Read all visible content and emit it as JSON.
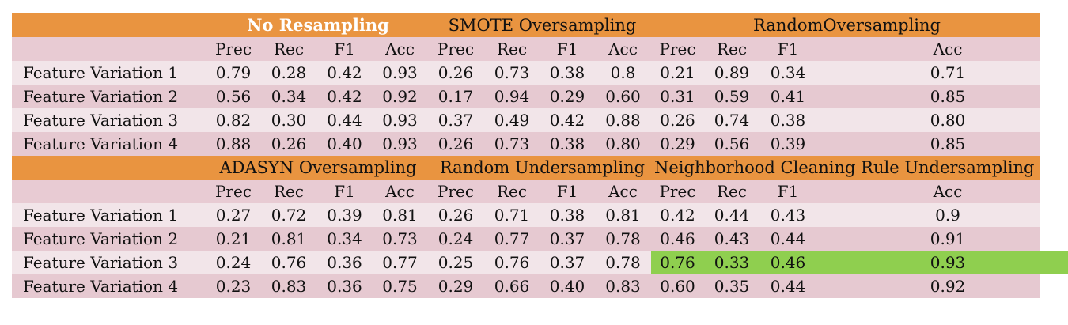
{
  "sections": [
    {
      "groups": [
        "No Resampling",
        "SMOTE Oversampling",
        "RandomOversampling"
      ],
      "metrics": [
        "Prec",
        "Rec",
        "F1",
        "Acc",
        "Prec",
        "Rec",
        "F1",
        "Acc",
        "Prec",
        "Rec",
        "F1",
        "Acc"
      ],
      "rows": [
        {
          "label": "Feature Variation 1",
          "values": [
            "0.79",
            "0.28",
            "0.42",
            "0.93",
            "0.26",
            "0.73",
            "0.38",
            "0.8",
            "0.21",
            "0.89",
            "0.34",
            "0.71"
          ]
        },
        {
          "label": "Feature Variation 2",
          "values": [
            "0.56",
            "0.34",
            "0.42",
            "0.92",
            "0.17",
            "0.94",
            "0.29",
            "0.60",
            "0.31",
            "0.59",
            "0.41",
            "0.85"
          ]
        },
        {
          "label": "Feature Variation 3",
          "values": [
            "0.82",
            "0.30",
            "0.44",
            "0.93",
            "0.37",
            "0.49",
            "0.42",
            "0.88",
            "0.26",
            "0.74",
            "0.38",
            "0.80"
          ]
        },
        {
          "label": "Feature Variation 4",
          "values": [
            "0.88",
            "0.26",
            "0.40",
            "0.93",
            "0.26",
            "0.73",
            "0.38",
            "0.80",
            "0.29",
            "0.56",
            "0.39",
            "0.85"
          ]
        }
      ]
    },
    {
      "groups": [
        "ADASYN Oversampling",
        "Random Undersampling",
        "Neighborhood Cleaning Rule Undersampling"
      ],
      "metrics": [
        "Prec",
        "Rec",
        "F1",
        "Acc",
        "Prec",
        "Rec",
        "F1",
        "Acc",
        "Prec",
        "Rec",
        "F1",
        "Acc"
      ],
      "rows": [
        {
          "label": "Feature Variation 1",
          "values": [
            "0.27",
            "0.72",
            "0.39",
            "0.81",
            "0.26",
            "0.71",
            "0.38",
            "0.81",
            "0.42",
            "0.44",
            "0.43",
            "0.9"
          ]
        },
        {
          "label": "Feature Variation 2",
          "values": [
            "0.21",
            "0.81",
            "0.34",
            "0.73",
            "0.24",
            "0.77",
            "0.37",
            "0.78",
            "0.46",
            "0.43",
            "0.44",
            "0.91"
          ]
        },
        {
          "label": "Feature Variation 3",
          "values": [
            "0.24",
            "0.76",
            "0.36",
            "0.77",
            "0.25",
            "0.76",
            "0.37",
            "0.78",
            "0.76",
            "0.33",
            "0.46",
            "0.93"
          ]
        },
        {
          "label": "Feature Variation 4",
          "values": [
            "0.23",
            "0.83",
            "0.36",
            "0.75",
            "0.29",
            "0.66",
            "0.40",
            "0.83",
            "0.60",
            "0.35",
            "0.44",
            "0.92"
          ]
        }
      ]
    }
  ],
  "colors": {
    "group_header": "#e99440",
    "metric_header": "#e8cbd3",
    "band_light": "#f2e5e9",
    "band_dark": "#e6c9d1",
    "highlight": "#8fcf4f"
  }
}
